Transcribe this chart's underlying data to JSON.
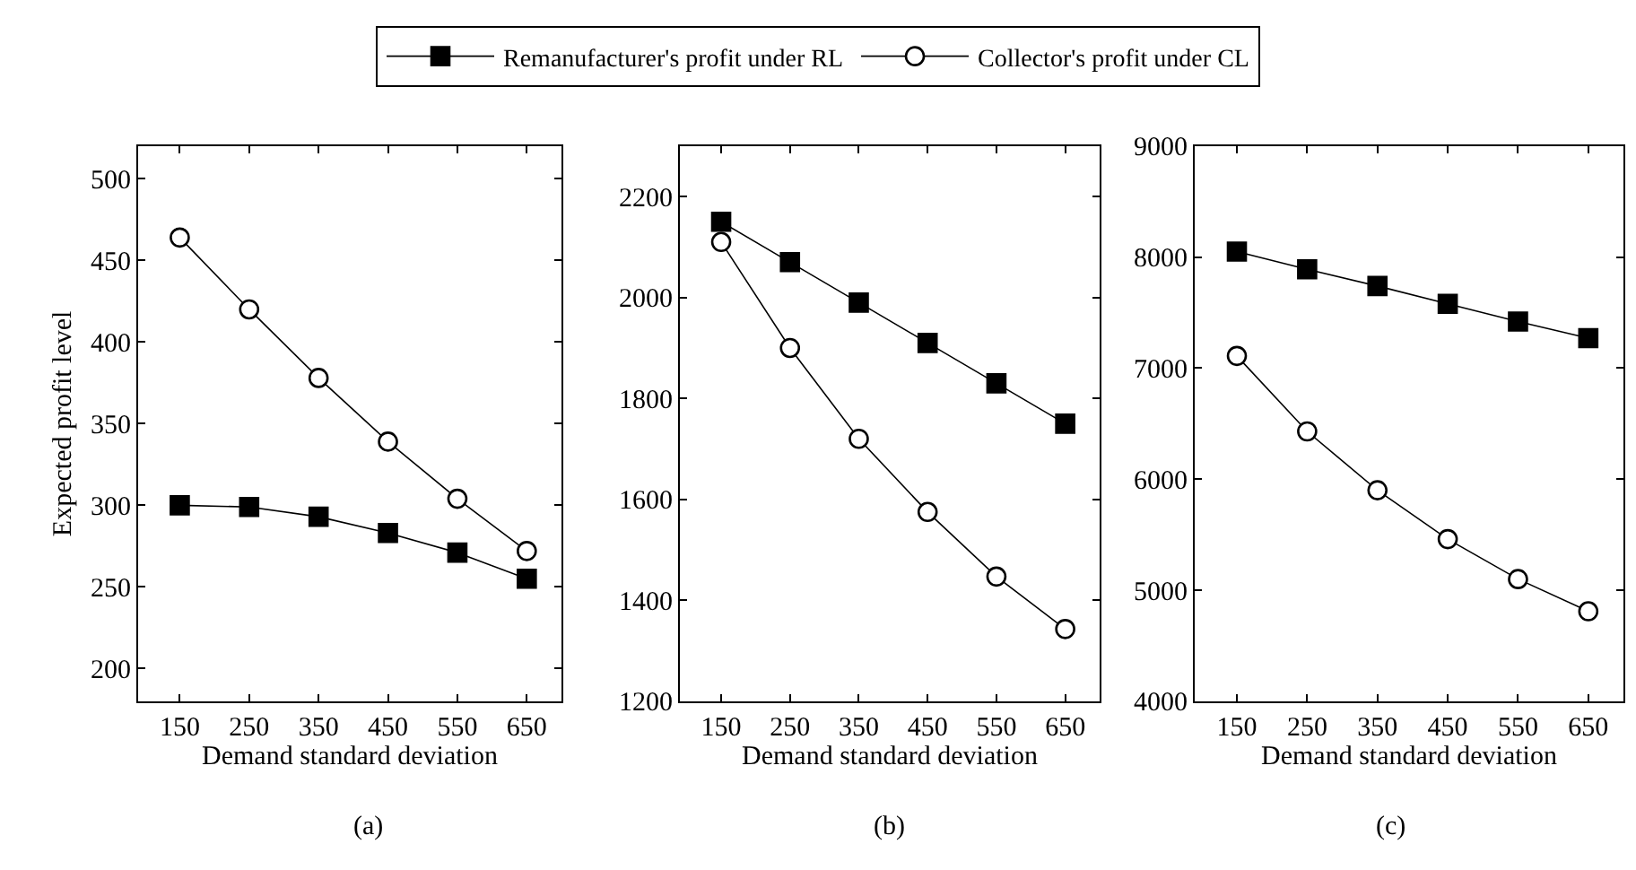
{
  "chart_data": [
    {
      "type": "line",
      "xlabel": "Demand standard deviation",
      "ylabel": "Expected profit level",
      "annotations": [
        "(a)"
      ],
      "x": [
        150,
        250,
        350,
        450,
        550,
        650
      ],
      "xlim": [
        90,
        700
      ],
      "xticks": [
        150,
        250,
        350,
        450,
        550,
        650
      ],
      "ylim": [
        180,
        520
      ],
      "yticks": [
        200,
        250,
        300,
        350,
        400,
        450,
        500
      ],
      "legend": "top",
      "series": [
        {
          "name": "Remanufacturer's profit under RL",
          "color": "#000000",
          "marker": "square",
          "values": [
            300,
            299,
            293,
            283,
            271,
            255
          ]
        },
        {
          "name": "Collector's profit under CL",
          "color": "#000000",
          "marker": "circle",
          "values": [
            464,
            420,
            378,
            339,
            304,
            272
          ]
        }
      ]
    },
    {
      "type": "line",
      "xlabel": "Demand standard deviation",
      "annotations": [
        "(b)"
      ],
      "x": [
        150,
        250,
        350,
        450,
        550,
        650
      ],
      "xlim": [
        90,
        700
      ],
      "xticks": [
        150,
        250,
        350,
        450,
        550,
        650
      ],
      "ylim": [
        1200,
        2300
      ],
      "yticks": [
        1200,
        1400,
        1600,
        1800,
        2000,
        2200
      ],
      "series": [
        {
          "color": "#000000",
          "marker": "square",
          "values": [
            2150,
            2070,
            1990,
            1910,
            1830,
            1750
          ]
        },
        {
          "color": "#000000",
          "marker": "circle",
          "values": [
            2110,
            1900,
            1720,
            1575,
            1447,
            1343
          ]
        }
      ]
    },
    {
      "type": "line",
      "xlabel": "Demand standard deviation",
      "annotations": [
        "(c)"
      ],
      "x": [
        150,
        250,
        350,
        450,
        550,
        650
      ],
      "xlim": [
        90,
        700
      ],
      "xticks": [
        150,
        250,
        350,
        450,
        550,
        650
      ],
      "ylim": [
        4000,
        9000
      ],
      "yticks": [
        4000,
        5000,
        6000,
        7000,
        8000,
        9000
      ],
      "series": [
        {
          "color": "#000000",
          "marker": "square",
          "values": [
            8050,
            7890,
            7740,
            7580,
            7420,
            7270
          ]
        },
        {
          "color": "#000000",
          "marker": "circle",
          "values": [
            7110,
            6430,
            5900,
            5460,
            5100,
            4810
          ]
        }
      ]
    }
  ]
}
